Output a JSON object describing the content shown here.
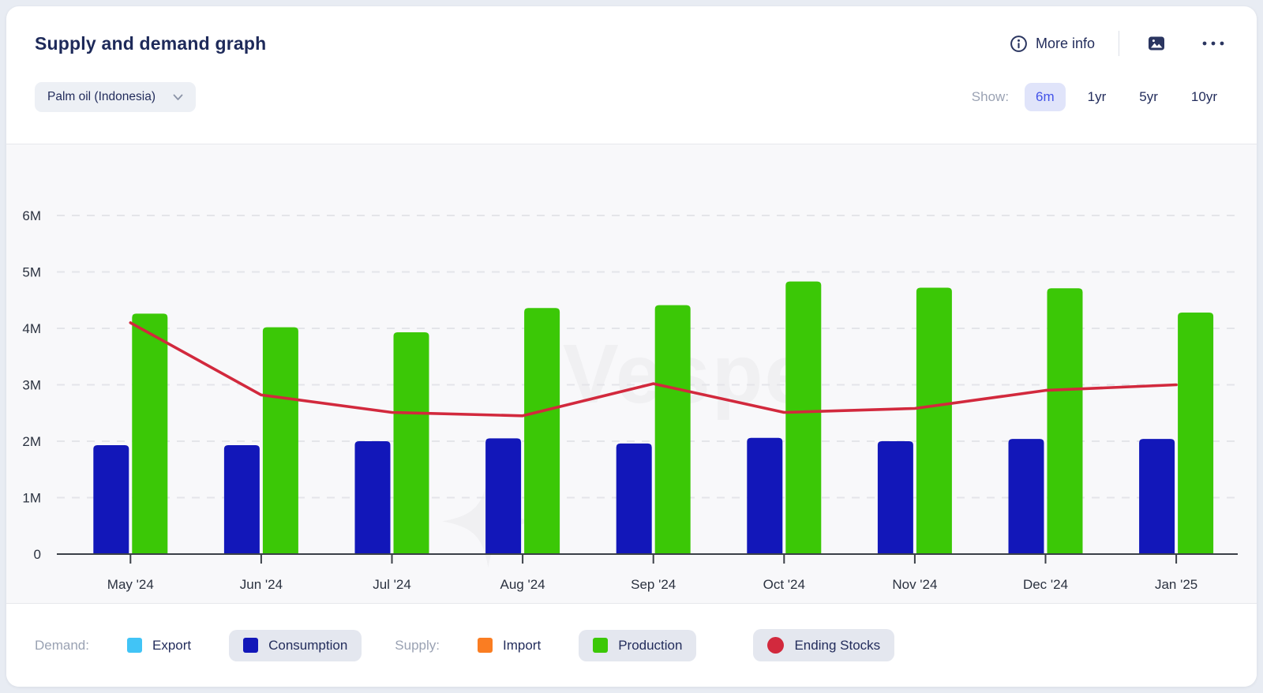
{
  "header": {
    "title": "Supply and demand graph",
    "more_info_label": "More info"
  },
  "controls": {
    "commodity_selector": {
      "value": "Palm oil (Indonesia)"
    },
    "show_label": "Show:",
    "ranges": [
      {
        "label": "6m",
        "selected": true
      },
      {
        "label": "1yr",
        "selected": false
      },
      {
        "label": "5yr",
        "selected": false
      },
      {
        "label": "10yr",
        "selected": false
      }
    ]
  },
  "watermark": {
    "text": "Vespe"
  },
  "chart_data": {
    "type": "bar",
    "subtype": "grouped-bars-with-line-overlay",
    "title": "Supply and demand graph",
    "categories": [
      "May '24",
      "Jun '24",
      "Jul '24",
      "Aug '24",
      "Sep '24",
      "Oct '24",
      "Nov '24",
      "Dec '24",
      "Jan '25"
    ],
    "series": [
      {
        "name": "Consumption",
        "group": "Demand",
        "render": "bar",
        "color": "#1217b9",
        "values": [
          1.93,
          1.93,
          2.0,
          2.05,
          1.96,
          2.06,
          2.0,
          2.04,
          2.04
        ]
      },
      {
        "name": "Production",
        "group": "Supply",
        "render": "bar",
        "color": "#3bc806",
        "values": [
          4.26,
          4.02,
          3.93,
          4.36,
          4.41,
          4.83,
          4.72,
          4.71,
          4.28
        ]
      },
      {
        "name": "Ending Stocks",
        "group": "",
        "render": "line",
        "color": "#d2293d",
        "values": [
          4.1,
          2.82,
          2.51,
          2.45,
          3.02,
          2.51,
          2.58,
          2.9,
          3.0
        ]
      }
    ],
    "unit": "millions",
    "y_ticks": [
      {
        "label": "0",
        "value": 0
      },
      {
        "label": "1M",
        "value": 1
      },
      {
        "label": "2M",
        "value": 2
      },
      {
        "label": "3M",
        "value": 3
      },
      {
        "label": "4M",
        "value": 4
      },
      {
        "label": "5M",
        "value": 5
      },
      {
        "label": "6M",
        "value": 6
      }
    ],
    "ylim": [
      0,
      6.5
    ],
    "xlabel": "",
    "ylabel": "",
    "grid": "horizontal-dashed",
    "legend_position": "bottom"
  },
  "legend": {
    "groups": [
      {
        "label": "Demand:",
        "items": [
          {
            "name": "Export",
            "color": "#41c4f6",
            "shape": "square",
            "selected": false
          },
          {
            "name": "Consumption",
            "color": "#1217b9",
            "shape": "square",
            "selected": true
          }
        ]
      },
      {
        "label": "Supply:",
        "items": [
          {
            "name": "Import",
            "color": "#fa7d22",
            "shape": "square",
            "selected": false
          },
          {
            "name": "Production",
            "color": "#3bc806",
            "shape": "square",
            "selected": true
          }
        ]
      },
      {
        "label": "",
        "items": [
          {
            "name": "Ending Stocks",
            "color": "#d2293d",
            "shape": "circle",
            "selected": true
          }
        ]
      }
    ]
  },
  "colors": {
    "accent_active": "#4353e8",
    "accent_active_bg": "#e0e4fa",
    "navy_text": "#232d5c",
    "muted_label": "#9aa2b3",
    "grid_line": "#e4e5e9",
    "axis_line": "#3b4048",
    "tick_text": "#2b3240",
    "plot_bg": "#f8f8fa"
  }
}
